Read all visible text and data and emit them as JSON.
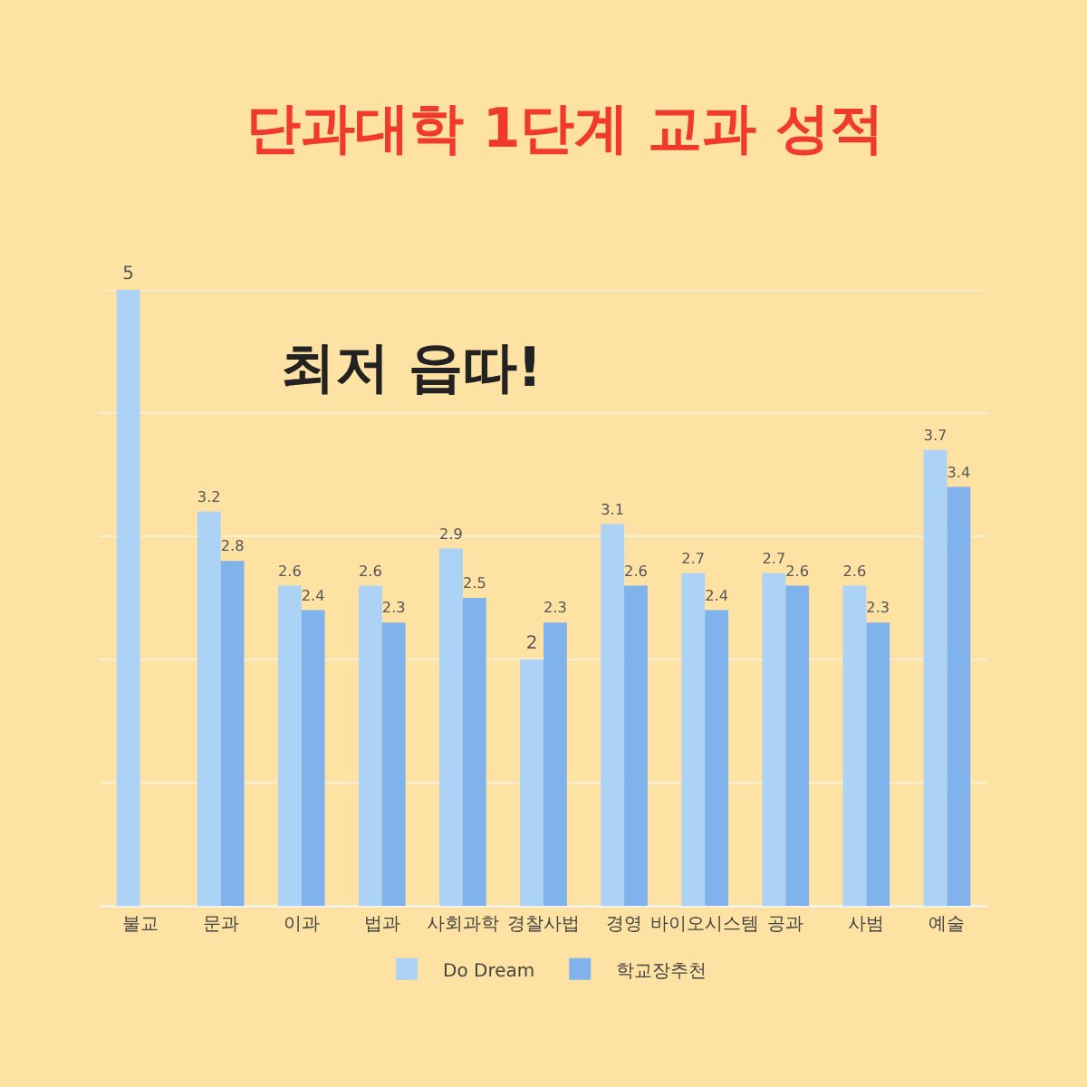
{
  "chart_data": {
    "type": "bar",
    "title": "단과대학 1단계 교과 성적",
    "annotations": [
      "최저 읍따!"
    ],
    "categories": [
      "불교",
      "문과",
      "이과",
      "법과",
      "사회과학",
      "경찰사법",
      "경영",
      "바이오시스템",
      "공과",
      "사범",
      "예술"
    ],
    "series": [
      {
        "name": "Do Dream",
        "color": "#acd3f5",
        "values": [
          5,
          3.2,
          2.6,
          2.6,
          2.9,
          2,
          3.1,
          2.7,
          2.7,
          2.6,
          3.7
        ]
      },
      {
        "name": "학교장추천",
        "color": "#80b3ec",
        "values": [
          null,
          2.8,
          2.4,
          2.3,
          2.5,
          2.3,
          2.6,
          2.4,
          2.6,
          2.3,
          3.4
        ]
      }
    ],
    "ylim": [
      0,
      5
    ],
    "yticks": [
      {
        "value": 0,
        "label": null
      },
      {
        "value": 1,
        "label": null
      },
      {
        "value": 2,
        "label": null
      },
      {
        "value": 3,
        "label": null
      },
      {
        "value": 4,
        "label": null
      },
      {
        "value": 5,
        "label": null
      }
    ],
    "grid": "y",
    "legend": "bottom",
    "tick_labels": "x",
    "data_labels": true
  }
}
